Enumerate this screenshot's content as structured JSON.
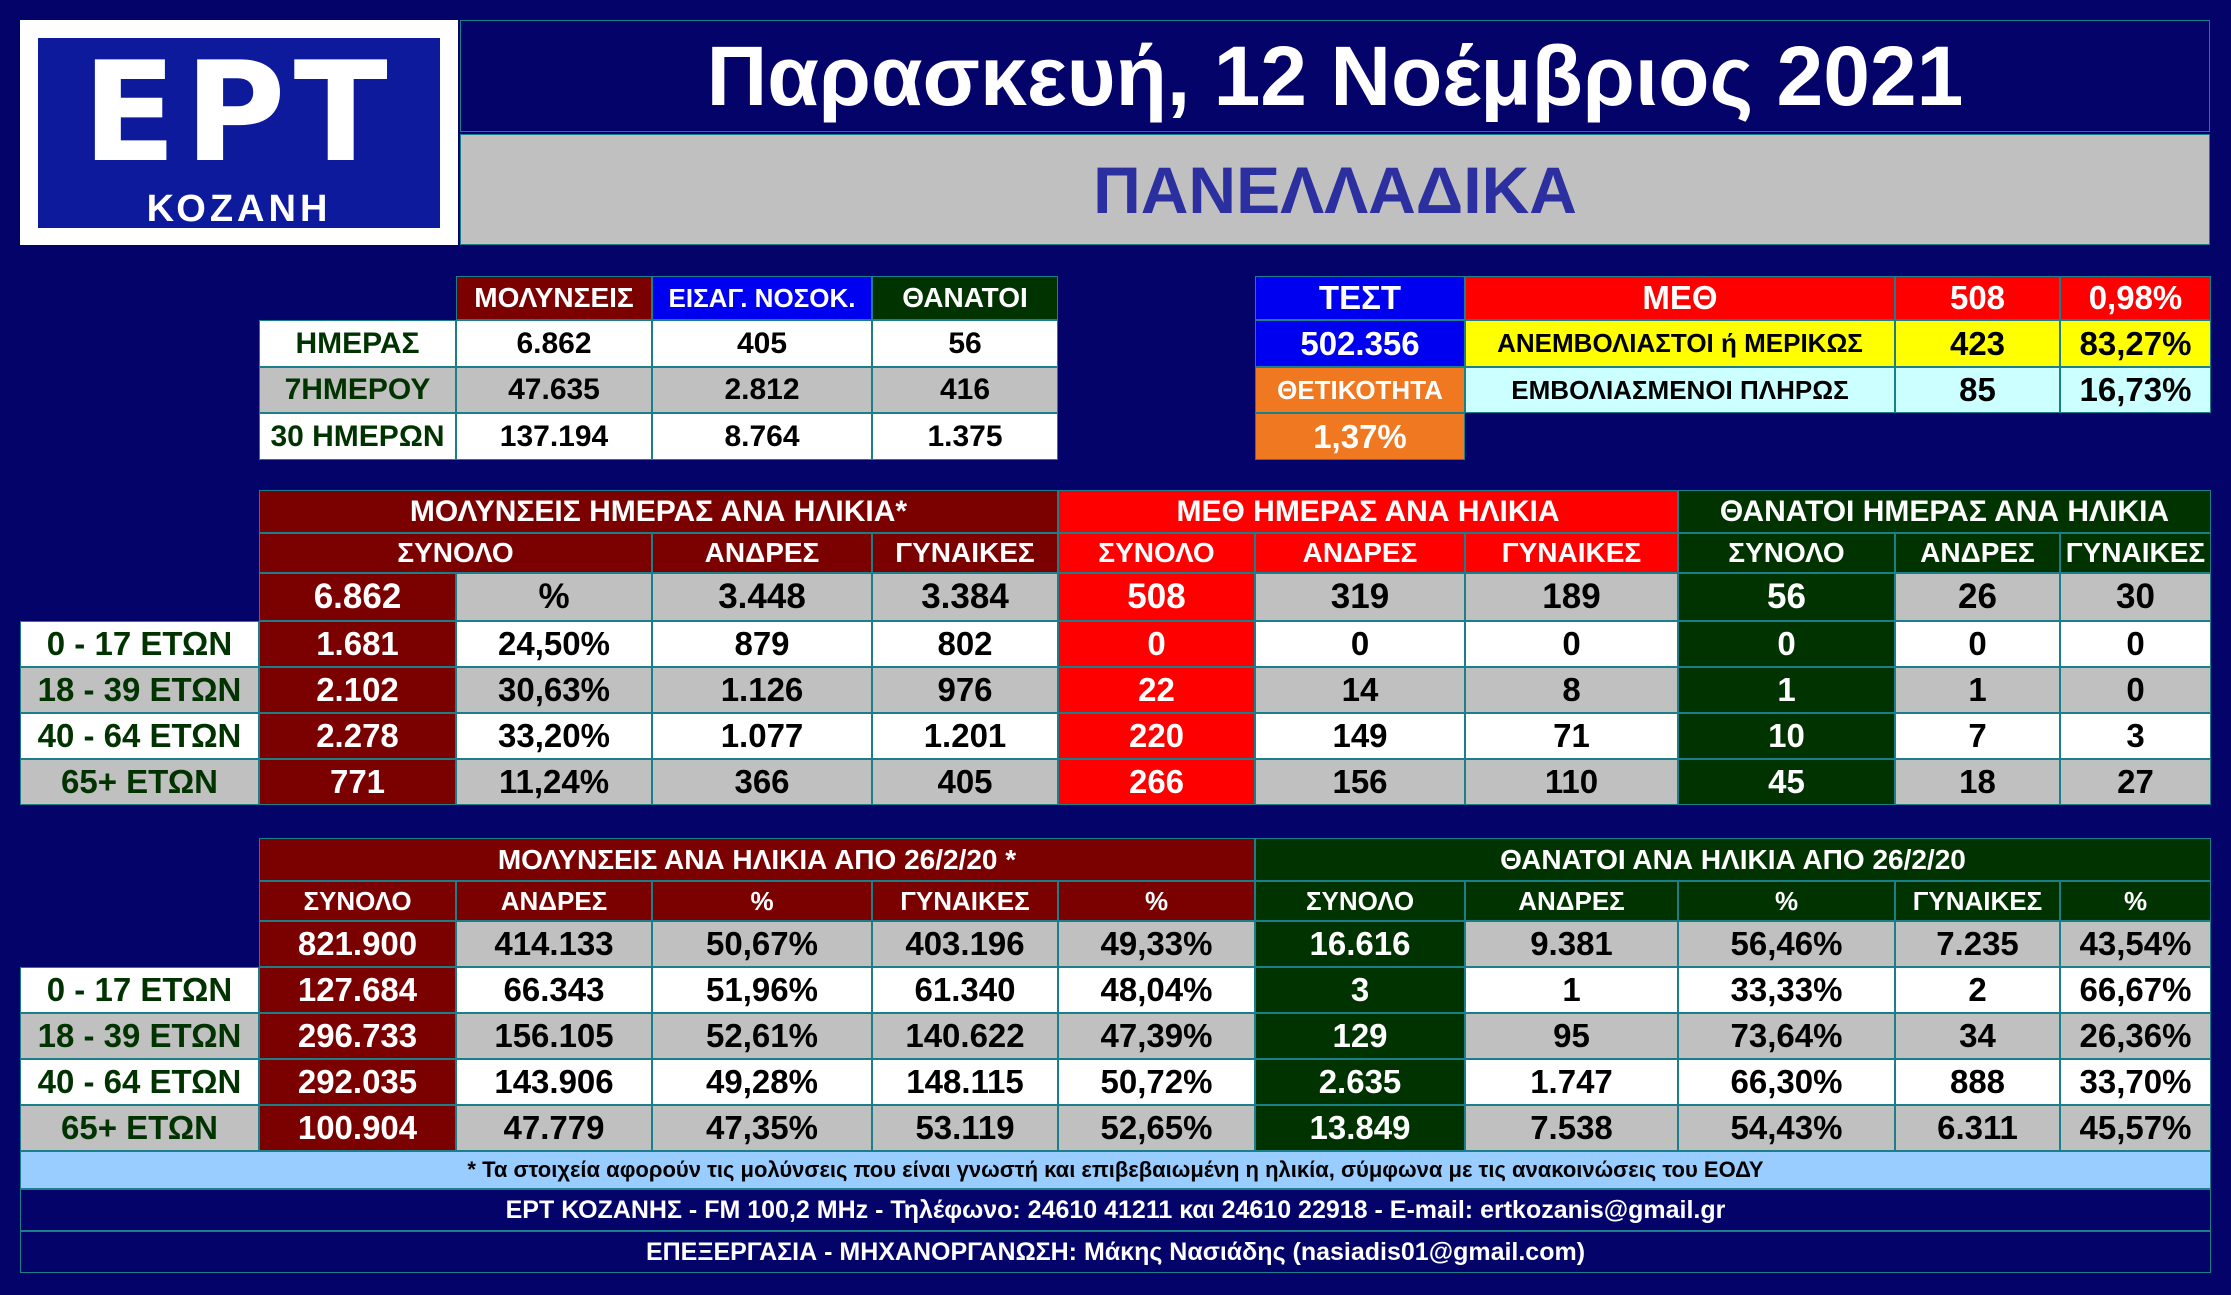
{
  "header": {
    "logo_text": "ΕΡΤ",
    "logo_city": "ΚΟΖΑΝΗ",
    "date": "Παρασκευή, 12 Νοέμβριος 2021",
    "subtitle": "ΠΑΝΕΛΛΑΔΙΚΑ"
  },
  "summary": {
    "headers": [
      "ΜΟΛΥΝΣΕΙΣ",
      "ΕΙΣΑΓ. ΝΟΣΟΚ.",
      "ΘΑΝΑΤΟΙ"
    ],
    "rows": [
      {
        "label": "ΗΜΕΡΑΣ",
        "values": [
          "6.862",
          "405",
          "56"
        ]
      },
      {
        "label": "7ΗΜΕΡΟΥ",
        "values": [
          "47.635",
          "2.812",
          "416"
        ]
      },
      {
        "label": "30 ΗΜΕΡΩΝ",
        "values": [
          "137.194",
          "8.764",
          "1.375"
        ]
      }
    ]
  },
  "tests": {
    "test_label": "ΤΕΣΤ",
    "test_value": "502.356",
    "positivity_label": "ΘΕΤΙΚΟΤΗΤΑ",
    "positivity_value": "1,37%"
  },
  "icu": {
    "label": "ΜΕΘ",
    "total": "508",
    "total_pct": "0,98%",
    "rows": [
      {
        "label": "ΑΝΕΜΒΟΛΙΑΣΤΟΙ ή ΜΕΡΙΚΩΣ",
        "value": "423",
        "pct": "83,27%"
      },
      {
        "label": "ΕΜΒΟΛΙΑΣΜΕΝΟΙ ΠΛΗΡΩΣ",
        "value": "85",
        "pct": "16,73%"
      }
    ]
  },
  "daily_by_age": {
    "group_headers": [
      "ΜΟΛΥΝΣΕΙΣ ΗΜΕΡΑΣ ΑΝΑ ΗΛΙΚΙΑ*",
      "ΜΕΘ ΗΜΕΡΑΣ ΑΝΑ ΗΛΙΚΙΑ",
      "ΘΑΝΑΤΟΙ ΗΜΕΡΑΣ ΑΝΑ ΗΛΙΚΙΑ"
    ],
    "sub_headers": [
      "ΣΥΝΟΛΟ",
      "ΑΝΔΡΕΣ",
      "ΓΥΝΑΙΚΕΣ",
      "ΣΥΝΟΛΟ",
      "ΑΝΔΡΕΣ",
      "ΓΥΝΑΙΚΕΣ",
      "ΣΥΝΟΛΟ",
      "ΑΝΔΡΕΣ",
      "ΓΥΝΑΙΚΕΣ"
    ],
    "totals": [
      "6.862",
      "%",
      "3.448",
      "3.384",
      "508",
      "319",
      "189",
      "56",
      "26",
      "30"
    ],
    "rows": [
      {
        "age": "0 - 17 ΕΤΩΝ",
        "values": [
          "1.681",
          "24,50%",
          "879",
          "802",
          "0",
          "0",
          "0",
          "0",
          "0",
          "0"
        ]
      },
      {
        "age": "18 - 39 ΕΤΩΝ",
        "values": [
          "2.102",
          "30,63%",
          "1.126",
          "976",
          "22",
          "14",
          "8",
          "1",
          "1",
          "0"
        ]
      },
      {
        "age": "40 - 64 ΕΤΩΝ",
        "values": [
          "2.278",
          "33,20%",
          "1.077",
          "1.201",
          "220",
          "149",
          "71",
          "10",
          "7",
          "3"
        ]
      },
      {
        "age": "65+ ΕΤΩΝ",
        "values": [
          "771",
          "11,24%",
          "366",
          "405",
          "266",
          "156",
          "110",
          "45",
          "18",
          "27"
        ]
      }
    ]
  },
  "cumulative_by_age": {
    "group_headers": [
      "ΜΟΛΥΝΣΕΙΣ ΑΝΑ ΗΛΙΚΙΑ ΑΠΟ 26/2/20 *",
      "ΘΑΝΑΤΟΙ ΑΝΑ ΗΛΙΚΙΑ ΑΠΟ 26/2/20"
    ],
    "sub_headers": [
      "ΣΥΝΟΛΟ",
      "ΑΝΔΡΕΣ",
      "%",
      "ΓΥΝΑΙΚΕΣ",
      "%",
      "ΣΥΝΟΛΟ",
      "ΑΝΔΡΕΣ",
      "%",
      "ΓΥΝΑΙΚΕΣ",
      "%"
    ],
    "totals": [
      "821.900",
      "414.133",
      "50,67%",
      "403.196",
      "49,33%",
      "16.616",
      "9.381",
      "56,46%",
      "7.235",
      "43,54%"
    ],
    "rows": [
      {
        "age": "0 - 17 ΕΤΩΝ",
        "values": [
          "127.684",
          "66.343",
          "51,96%",
          "61.340",
          "48,04%",
          "3",
          "1",
          "33,33%",
          "2",
          "66,67%"
        ]
      },
      {
        "age": "18 - 39 ΕΤΩΝ",
        "values": [
          "296.733",
          "156.105",
          "52,61%",
          "140.622",
          "47,39%",
          "129",
          "95",
          "73,64%",
          "34",
          "26,36%"
        ]
      },
      {
        "age": "40 - 64 ΕΤΩΝ",
        "values": [
          "292.035",
          "143.906",
          "49,28%",
          "148.115",
          "50,72%",
          "2.635",
          "1.747",
          "66,30%",
          "888",
          "33,70%"
        ]
      },
      {
        "age": "65+ ΕΤΩΝ",
        "values": [
          "100.904",
          "47.779",
          "47,35%",
          "53.119",
          "52,65%",
          "13.849",
          "7.538",
          "54,43%",
          "6.311",
          "45,57%"
        ]
      }
    ]
  },
  "footer": {
    "note": "* Τα στοιχεία αφορούν τις μολύνσεις που είναι γνωστή και επιβεβαιωμένη η ηλικία, σύμφωνα με τις ανακοινώσεις του ΕΟΔΥ",
    "contact": "ΕΡΤ ΚΟΖΑΝΗΣ - FM 100,2 MHz - Τηλέφωνο:  24610 41211 και 24610 22918 - E-mail: ertkozanis@gmail.gr",
    "credits": "ΕΠΕΞΕΡΓΑΣΙΑ - ΜΗΧΑΝΟΡΓΑΝΩΣΗ: Μάκης Νασιάδης (nasiadis01@gmail.com)"
  }
}
